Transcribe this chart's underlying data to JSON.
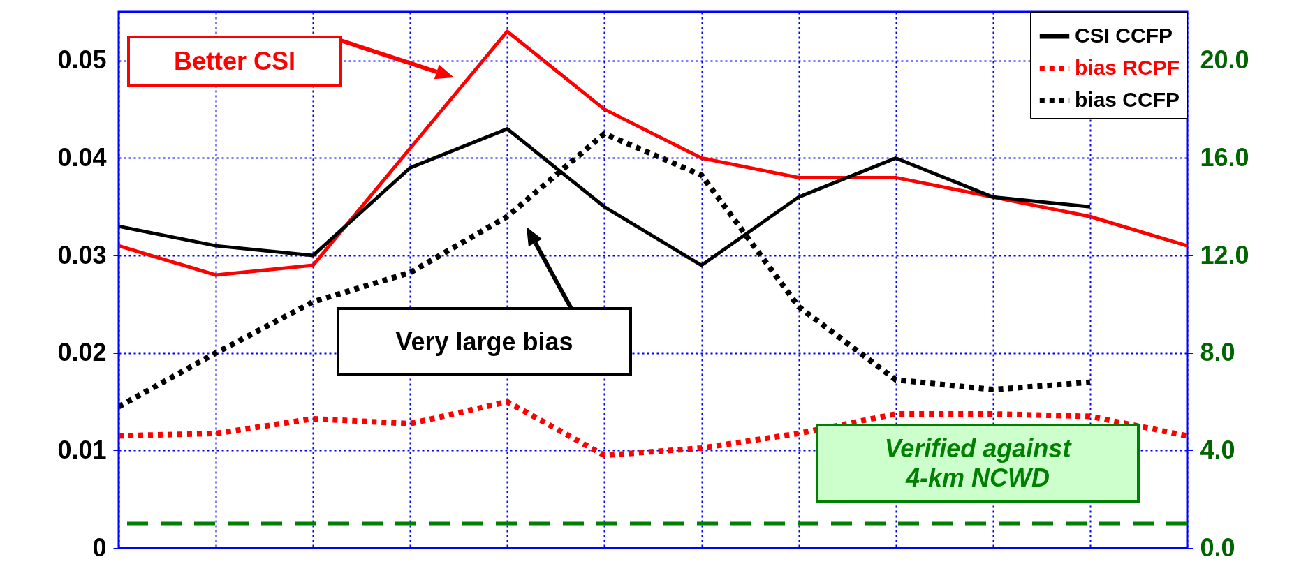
{
  "chart_data": {
    "type": "line",
    "categories": [
      null,
      null,
      null,
      null,
      null,
      null,
      null,
      null,
      null,
      null,
      null,
      null
    ],
    "series": [
      {
        "color": "#ff0000",
        "line_style": "solid",
        "values": [
          0.031,
          0.028,
          0.029,
          0.041,
          0.053,
          0.045,
          0.04,
          0.038,
          0.038,
          0.036,
          0.034,
          0.031
        ]
      },
      {
        "name": "CSI CCFP",
        "color": "#000000",
        "line_style": "solid",
        "values": [
          0.033,
          0.031,
          0.03,
          0.039,
          0.043,
          0.035,
          0.029,
          0.036,
          0.04,
          0.036,
          0.035,
          null
        ]
      },
      {
        "name": "bias RCPF",
        "color": "#ff0000",
        "axis": "y2",
        "line_style": "dotted",
        "values": [
          4.6,
          4.7,
          5.3,
          5.1,
          6.0,
          3.8,
          4.1,
          4.7,
          5.5,
          5.5,
          5.4,
          4.6
        ]
      },
      {
        "name": "bias CCFP",
        "color": "#000000",
        "axis": "y2",
        "line_style": "dotted",
        "values": [
          5.8,
          8.0,
          10.1,
          11.3,
          13.6,
          17.0,
          15.3,
          9.9,
          6.9,
          6.5,
          6.8,
          null
        ]
      }
    ],
    "ylim": [
      0,
      0.055
    ],
    "yticks": [
      0,
      0.01,
      0.02,
      0.03,
      0.04,
      0.05
    ],
    "y2lim": [
      0,
      22
    ],
    "y2ticks": [
      {
        "value": 0,
        "label": "0.0"
      },
      {
        "value": 4,
        "label": "4.0"
      },
      {
        "value": 8,
        "label": "8.0"
      },
      {
        "value": 12,
        "label": "12.0"
      },
      {
        "value": 16,
        "label": "16.0"
      },
      {
        "value": 20,
        "label": "20.0"
      }
    ],
    "ref_lines": [
      {
        "axis": "y2",
        "value": 1.0,
        "color": "#008000",
        "line_style": "dashed"
      }
    ],
    "annotations": [
      "Better CSI",
      "Very large bias",
      "Verified against\n4-km NCWD"
    ],
    "grid": true,
    "legend": "top right",
    "tick_labels": "y"
  }
}
